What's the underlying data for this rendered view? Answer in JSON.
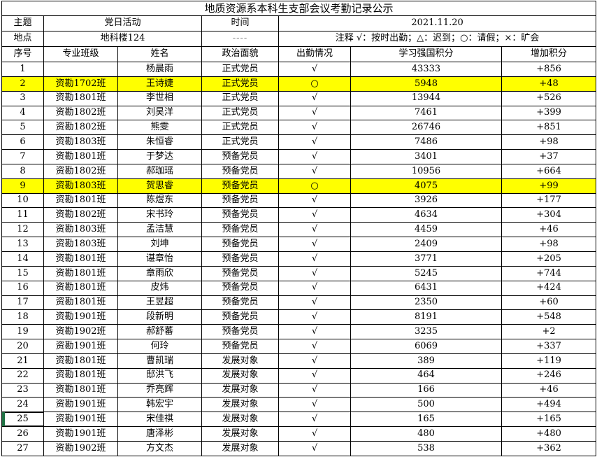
{
  "title": "地质资源系本科生支部会议考勤记录公示",
  "meta": {
    "subject_label": "主题",
    "subject_value": "党日活动",
    "time_label": "时间",
    "time_value": "2021.11.20",
    "location_label": "地点",
    "location_value": "地科楼124",
    "time_placeholder_dashes": "----",
    "note": "注释 √：按时出勤；△：迟到；○：请假；×：旷会"
  },
  "columns": {
    "no": "序号",
    "class_name": "专业班级",
    "name": "姓名",
    "status": "政治面貌",
    "attendance": "出勤情况",
    "score": "学习强国积分",
    "delta": "增加积分"
  },
  "colors": {
    "highlight_yellow": "#ffff00",
    "selection_marker_green": "#1f7244",
    "dash_gray": "#808080"
  },
  "rows": [
    {
      "no": "1",
      "class_name": "",
      "name": "杨晨雨",
      "status": "正式党员",
      "attendance": "√",
      "score": "43333",
      "delta": "+856",
      "highlight": false,
      "marker": false
    },
    {
      "no": "2",
      "class_name": "资勘1702班",
      "name": "王诗婕",
      "status": "正式党员",
      "attendance": "○",
      "score": "5948",
      "delta": "+48",
      "highlight": true,
      "marker": false
    },
    {
      "no": "3",
      "class_name": "资勘1801班",
      "name": "李世相",
      "status": "正式党员",
      "attendance": "√",
      "score": "13944",
      "delta": "+526",
      "highlight": false,
      "marker": false
    },
    {
      "no": "4",
      "class_name": "资勘1802班",
      "name": "刘昊洋",
      "status": "正式党员",
      "attendance": "√",
      "score": "7461",
      "delta": "+399",
      "highlight": false,
      "marker": false
    },
    {
      "no": "5",
      "class_name": "资勘1802班",
      "name": "熊雯",
      "status": "正式党员",
      "attendance": "√",
      "score": "26746",
      "delta": "+851",
      "highlight": false,
      "marker": false
    },
    {
      "no": "6",
      "class_name": "资勘1803班",
      "name": "朱恒睿",
      "status": "正式党员",
      "attendance": "√",
      "score": "7486",
      "delta": "+98",
      "highlight": false,
      "marker": false
    },
    {
      "no": "7",
      "class_name": "资勘1801班",
      "name": "于梦达",
      "status": "预备党员",
      "attendance": "√",
      "score": "3401",
      "delta": "+37",
      "highlight": false,
      "marker": false
    },
    {
      "no": "8",
      "class_name": "资勘1802班",
      "name": "郝珈瑶",
      "status": "预备党员",
      "attendance": "√",
      "score": "10956",
      "delta": "+664",
      "highlight": false,
      "marker": false
    },
    {
      "no": "9",
      "class_name": "资勘1803班",
      "name": "贺思睿",
      "status": "预备党员",
      "attendance": "○",
      "score": "4075",
      "delta": "+99",
      "highlight": true,
      "marker": false
    },
    {
      "no": "10",
      "class_name": "资勘1801班",
      "name": "陈煜东",
      "status": "预备党员",
      "attendance": "√",
      "score": "3926",
      "delta": "+177",
      "highlight": false,
      "marker": false
    },
    {
      "no": "11",
      "class_name": "资勘1802班",
      "name": "宋书玲",
      "status": "预备党员",
      "attendance": "√",
      "score": "4634",
      "delta": "+304",
      "highlight": false,
      "marker": false
    },
    {
      "no": "12",
      "class_name": "资勘1803班",
      "name": "孟洁慧",
      "status": "预备党员",
      "attendance": "√",
      "score": "4459",
      "delta": "+46",
      "highlight": false,
      "marker": false
    },
    {
      "no": "13",
      "class_name": "资勘1803班",
      "name": "刘坤",
      "status": "预备党员",
      "attendance": "√",
      "score": "2409",
      "delta": "+98",
      "highlight": false,
      "marker": false
    },
    {
      "no": "14",
      "class_name": "资勘1801班",
      "name": "谌章怡",
      "status": "预备党员",
      "attendance": "√",
      "score": "3771",
      "delta": "+205",
      "highlight": false,
      "marker": false
    },
    {
      "no": "15",
      "class_name": "资勘1801班",
      "name": "章雨欣",
      "status": "预备党员",
      "attendance": "√",
      "score": "5245",
      "delta": "+744",
      "highlight": false,
      "marker": false
    },
    {
      "no": "16",
      "class_name": "资勘1801班",
      "name": "皮炜",
      "status": "预备党员",
      "attendance": "√",
      "score": "6431",
      "delta": "+424",
      "highlight": false,
      "marker": false
    },
    {
      "no": "17",
      "class_name": "资勘1801班",
      "name": "王昱超",
      "status": "预备党员",
      "attendance": "√",
      "score": "2350",
      "delta": "+60",
      "highlight": false,
      "marker": false
    },
    {
      "no": "18",
      "class_name": "资勘1901班",
      "name": "段新明",
      "status": "预备党员",
      "attendance": "√",
      "score": "8191",
      "delta": "+548",
      "highlight": false,
      "marker": false
    },
    {
      "no": "19",
      "class_name": "资勘1902班",
      "name": "郝舒蕃",
      "status": "预备党员",
      "attendance": "√",
      "score": "3235",
      "delta": "+2",
      "highlight": false,
      "marker": false
    },
    {
      "no": "20",
      "class_name": "资勘1901班",
      "name": "何玲",
      "status": "预备党员",
      "attendance": "√",
      "score": "6069",
      "delta": "+337",
      "highlight": false,
      "marker": false
    },
    {
      "no": "21",
      "class_name": "资勘1801班",
      "name": "曹凯瑞",
      "status": "发展对象",
      "attendance": "√",
      "score": "389",
      "delta": "+119",
      "highlight": false,
      "marker": false
    },
    {
      "no": "22",
      "class_name": "资勘1801班",
      "name": "邸洪飞",
      "status": "发展对象",
      "attendance": "√",
      "score": "464",
      "delta": "+246",
      "highlight": false,
      "marker": false
    },
    {
      "no": "23",
      "class_name": "资勘1801班",
      "name": "乔亮辉",
      "status": "发展对象",
      "attendance": "√",
      "score": "166",
      "delta": "+46",
      "highlight": false,
      "marker": false
    },
    {
      "no": "24",
      "class_name": "资勘1901班",
      "name": "韩宏宇",
      "status": "发展对象",
      "attendance": "√",
      "score": "500",
      "delta": "+494",
      "highlight": false,
      "marker": false
    },
    {
      "no": "25",
      "class_name": "资勘1901班",
      "name": "宋佳祺",
      "status": "发展对象",
      "attendance": "√",
      "score": "165",
      "delta": "+165",
      "highlight": false,
      "marker": true
    },
    {
      "no": "26",
      "class_name": "资勘1901班",
      "name": "唐泽彬",
      "status": "发展对象",
      "attendance": "√",
      "score": "480",
      "delta": "+480",
      "highlight": false,
      "marker": false
    },
    {
      "no": "27",
      "class_name": "资勘1902班",
      "name": "方文杰",
      "status": "发展对象",
      "attendance": "√",
      "score": "538",
      "delta": "+362",
      "highlight": false,
      "marker": false
    }
  ]
}
